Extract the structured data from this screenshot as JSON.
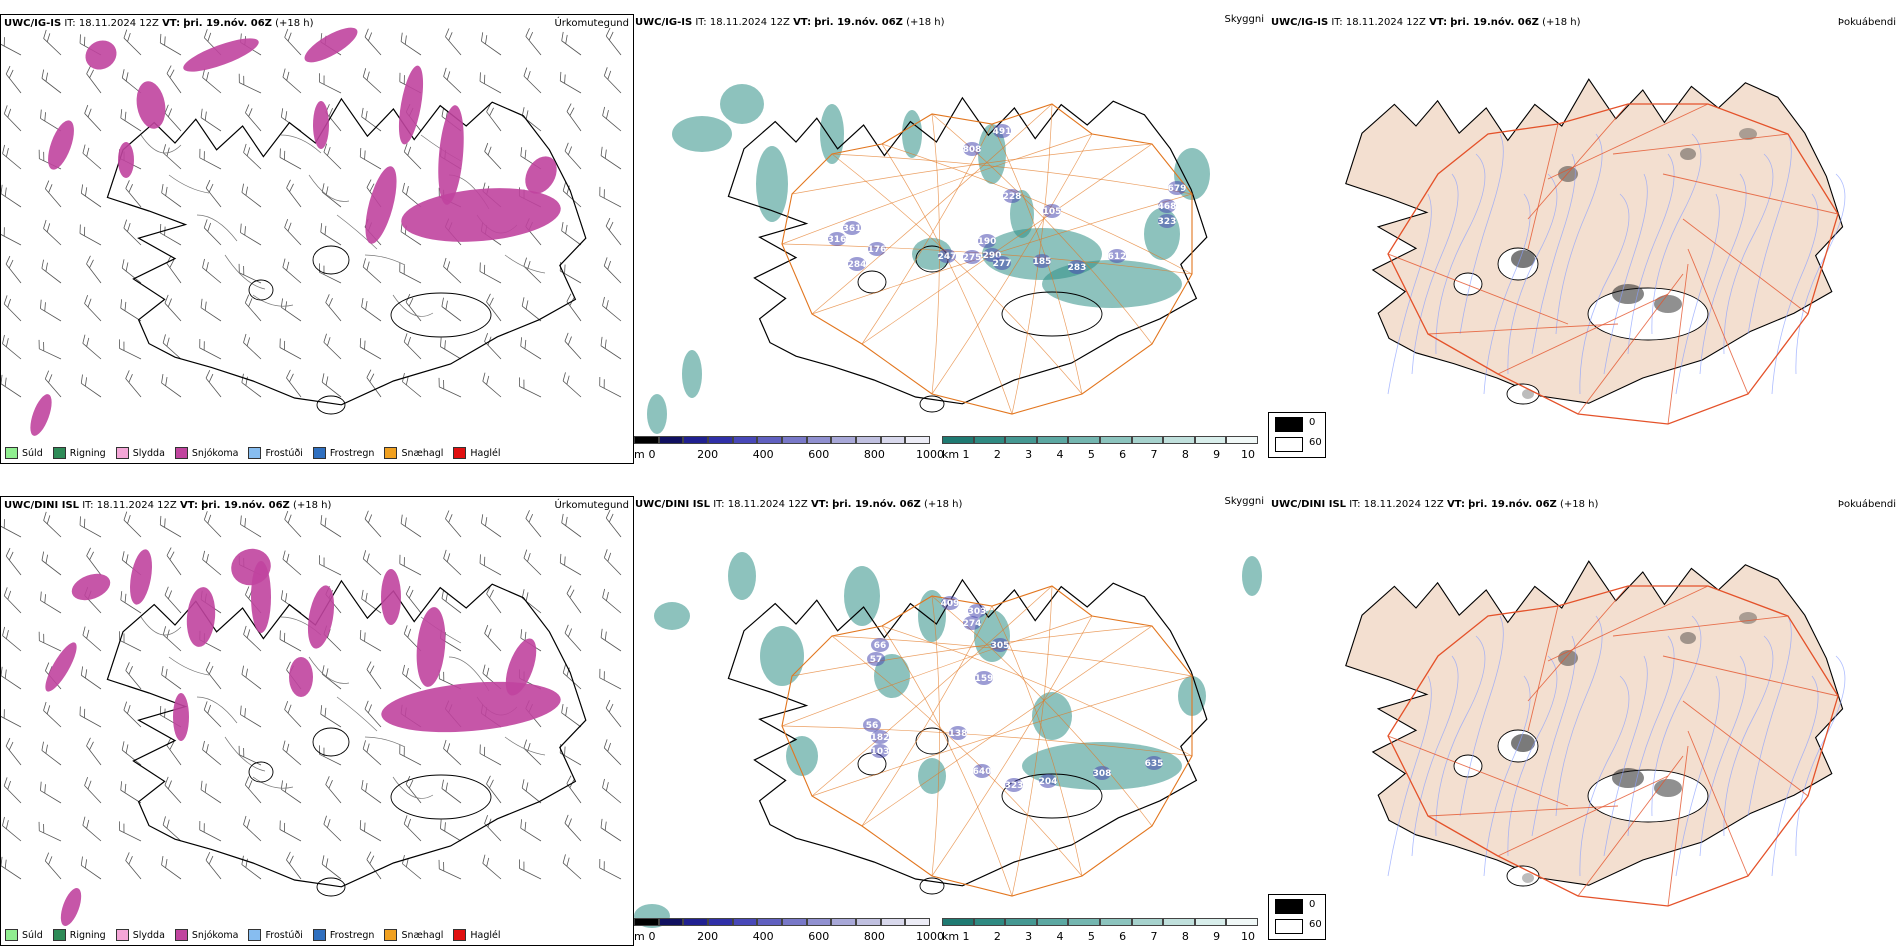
{
  "rows": [
    {
      "model": "UWC/IG-IS",
      "it_label": "IT:",
      "it_value": "18.11.2024 12Z",
      "vt_label": "VT:",
      "vt_value": "þri. 19.nóv. 06Z",
      "lead": "(+18 h)",
      "panels": [
        "Úrkomutegund",
        "Skyggni",
        "Þokuábendi"
      ],
      "ceiling_labels": [
        "491",
        "808",
        "228",
        "361",
        "316",
        "176",
        "284",
        "247",
        "190",
        "290",
        "275",
        "277",
        "185",
        "105",
        "283",
        "612",
        "468",
        "323",
        "679"
      ]
    },
    {
      "model": "UWC/DINI ISL",
      "it_label": "IT:",
      "it_value": "18.11.2024 12Z",
      "vt_label": "VT:",
      "vt_value": "þri. 19.nóv. 06Z",
      "lead": "(+18 h)",
      "panels": [
        "Úrkomutegund",
        "Skyggni",
        "Þokuábendi"
      ],
      "ceiling_labels": [
        "409",
        "303",
        "274",
        "305",
        "159",
        "66",
        "57",
        "56",
        "182",
        "103",
        "138",
        "640",
        "323",
        "204",
        "308",
        "635"
      ]
    }
  ],
  "precip_legend": [
    {
      "label": "Súld",
      "color": "#90ee90"
    },
    {
      "label": "Rigning",
      "color": "#2e8b57"
    },
    {
      "label": "Slydda",
      "color": "#f4a6d7"
    },
    {
      "label": "Snjókoma",
      "color": "#c0449e"
    },
    {
      "label": "Frostúði",
      "color": "#87bdf0"
    },
    {
      "label": "Frostregn",
      "color": "#2f6fbf"
    },
    {
      "label": "Snæhagl",
      "color": "#f0a020"
    },
    {
      "label": "Haglél",
      "color": "#e01010"
    }
  ],
  "ceiling_scale": {
    "unit": "m",
    "ticks": [
      "0",
      "200",
      "400",
      "600",
      "800",
      "1000"
    ]
  },
  "visibility_scale": {
    "unit": "km",
    "ticks": [
      "1",
      "2",
      "3",
      "4",
      "5",
      "6",
      "7",
      "8",
      "9",
      "10"
    ]
  },
  "fog_legend": [
    {
      "label": "0",
      "color": "#000000"
    },
    {
      "label": "60",
      "color": "#ffffff"
    }
  ],
  "colors": {
    "snow": "#c0449e",
    "visibility": "#2f8f86",
    "ceiling": "#4a4ab0",
    "roads": "#e2761f",
    "fog_land": "#f3dfd0",
    "fog_roads": "#e4522a",
    "fog_rivers": "#8aa0ff"
  }
}
